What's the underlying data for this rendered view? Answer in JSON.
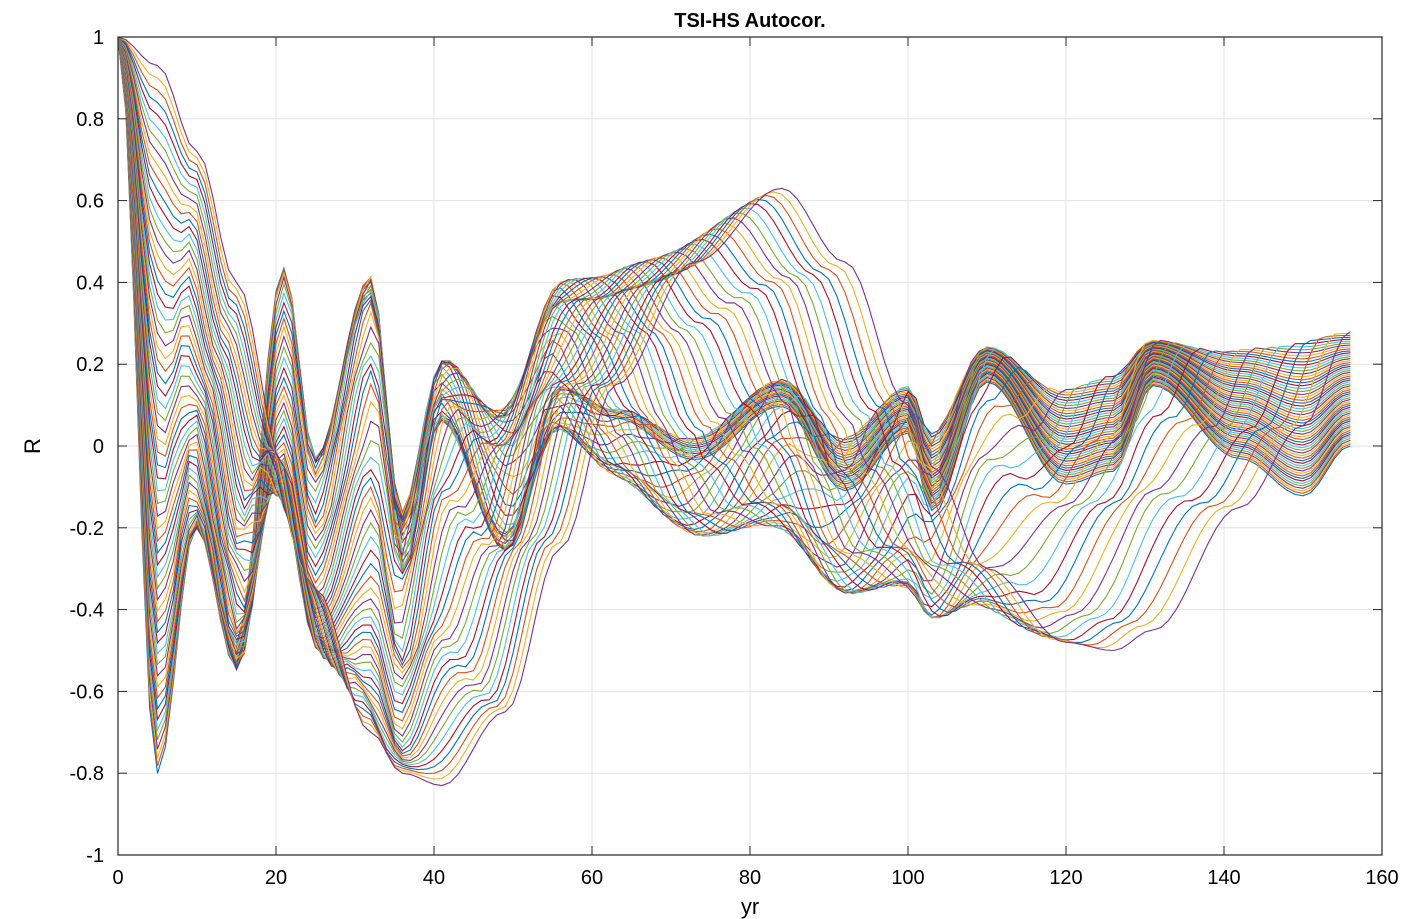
{
  "chart_data": {
    "type": "line",
    "title": "TSI-HS Autocor.",
    "xlabel": "yr",
    "ylabel": "R",
    "xlim": [
      0,
      160
    ],
    "ylim": [
      -1,
      1
    ],
    "x_ticks": [
      0,
      20,
      40,
      60,
      80,
      100,
      120,
      140,
      160
    ],
    "x_tick_labels": [
      "0",
      "20",
      "40",
      "60",
      "80",
      "100",
      "120",
      "140",
      "160"
    ],
    "y_ticks": [
      -1,
      -0.8,
      -0.6,
      -0.4,
      -0.2,
      0,
      0.2,
      0.4,
      0.6,
      0.8,
      1
    ],
    "y_tick_labels": [
      "-1",
      "-0.8",
      "-0.6",
      "-0.4",
      "-0.2",
      "0",
      "0.2",
      "0.4",
      "0.6",
      "0.8",
      "1"
    ],
    "grid": true,
    "x_max": 156,
    "series_count": 60,
    "envelope": {
      "description_points": {
        "x": [
          0,
          5,
          10,
          15,
          21,
          25,
          32,
          36,
          41,
          49,
          56,
          63,
          73,
          84,
          92,
          100,
          103,
          110,
          120,
          126,
          131,
          142,
          150,
          156
        ],
        "outer_series": [
          1.0,
          0.93,
          0.72,
          0.4,
          -0.05,
          -0.35,
          -0.7,
          -0.8,
          -0.83,
          -0.65,
          -0.25,
          0.15,
          0.45,
          0.63,
          0.45,
          0.1,
          -0.05,
          -0.3,
          -0.48,
          -0.5,
          -0.45,
          -0.15,
          0.05,
          0.28
        ],
        "inner_series": [
          1.0,
          -0.84,
          -0.2,
          -0.55,
          0.52,
          -0.05,
          0.48,
          -0.4,
          0.1,
          -0.3,
          0.2,
          0.1,
          -0.05,
          0.15,
          -0.17,
          0.05,
          -0.25,
          0.25,
          -0.15,
          -0.1,
          0.24,
          -0.05,
          -0.2,
          0.0
        ]
      }
    },
    "colors": [
      "#0072BD",
      "#D95319",
      "#EDB120",
      "#7E2F8E",
      "#77AC30",
      "#4DBEEE",
      "#A2142F"
    ]
  }
}
